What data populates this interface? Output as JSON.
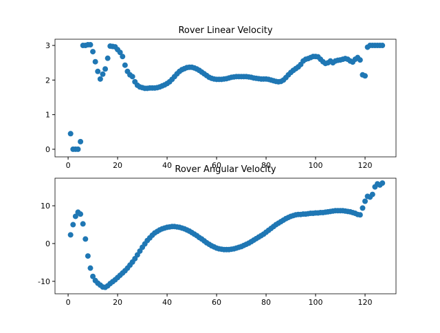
{
  "chart_data": [
    {
      "type": "scatter",
      "title": "Rover Linear Velocity",
      "color": "#1f77b4",
      "x": [
        1,
        2,
        3,
        4,
        5,
        6,
        7,
        8,
        9,
        10,
        11,
        12,
        13,
        14,
        15,
        16,
        17,
        18,
        19,
        20,
        21,
        22,
        23,
        24,
        25,
        26,
        27,
        28,
        29,
        30,
        31,
        32,
        33,
        34,
        35,
        36,
        37,
        38,
        39,
        40,
        41,
        42,
        43,
        44,
        45,
        46,
        47,
        48,
        49,
        50,
        51,
        52,
        53,
        54,
        55,
        56,
        57,
        58,
        59,
        60,
        61,
        62,
        63,
        64,
        65,
        66,
        67,
        68,
        69,
        70,
        71,
        72,
        73,
        74,
        75,
        76,
        77,
        78,
        79,
        80,
        81,
        82,
        83,
        84,
        85,
        86,
        87,
        88,
        89,
        90,
        91,
        92,
        93,
        94,
        95,
        96,
        97,
        98,
        99,
        100,
        101,
        102,
        103,
        104,
        105,
        106,
        107,
        108,
        109,
        110,
        111,
        112,
        113,
        114,
        115,
        116,
        117,
        118,
        119,
        120,
        121,
        122,
        123,
        124,
        125,
        126,
        127
      ],
      "values": [
        0.45,
        0,
        0,
        0,
        0.22,
        3.0,
        3.0,
        3.02,
        3.02,
        2.82,
        2.53,
        2.25,
        2.03,
        2.17,
        2.32,
        2.63,
        2.98,
        2.97,
        2.96,
        2.88,
        2.8,
        2.68,
        2.43,
        2.25,
        2.15,
        2.1,
        1.95,
        1.85,
        1.8,
        1.78,
        1.76,
        1.76,
        1.77,
        1.77,
        1.77,
        1.78,
        1.8,
        1.83,
        1.86,
        1.9,
        1.95,
        2.02,
        2.1,
        2.18,
        2.25,
        2.3,
        2.33,
        2.36,
        2.37,
        2.37,
        2.35,
        2.32,
        2.28,
        2.23,
        2.18,
        2.13,
        2.08,
        2.05,
        2.03,
        2.02,
        2.02,
        2.02,
        2.03,
        2.04,
        2.06,
        2.08,
        2.09,
        2.1,
        2.1,
        2.1,
        2.1,
        2.1,
        2.09,
        2.08,
        2.06,
        2.05,
        2.04,
        2.03,
        2.03,
        2.03,
        2.02,
        2.0,
        1.98,
        1.96,
        1.95,
        1.96,
        2.0,
        2.07,
        2.15,
        2.22,
        2.28,
        2.33,
        2.38,
        2.45,
        2.55,
        2.6,
        2.62,
        2.65,
        2.68,
        2.68,
        2.67,
        2.6,
        2.53,
        2.48,
        2.5,
        2.55,
        2.5,
        2.55,
        2.57,
        2.58,
        2.6,
        2.62,
        2.6,
        2.55,
        2.52,
        2.6,
        2.65,
        2.58,
        2.15,
        2.12,
        2.95,
        3.0,
        3.0,
        3.0,
        3.0,
        3.0,
        3.0
      ],
      "xlim": [
        -5.3,
        132.5
      ],
      "xticks": [
        0,
        20,
        40,
        60,
        80,
        100,
        120
      ],
      "ylim": [
        -0.22,
        3.18
      ],
      "yticks": [
        0,
        1,
        2,
        3
      ]
    },
    {
      "type": "scatter",
      "title": "Rover Angular Velocity",
      "color": "#1f77b4",
      "x": [
        1,
        2,
        3,
        4,
        5,
        6,
        7,
        8,
        9,
        10,
        11,
        12,
        13,
        14,
        15,
        16,
        17,
        18,
        19,
        20,
        21,
        22,
        23,
        24,
        25,
        26,
        27,
        28,
        29,
        30,
        31,
        32,
        33,
        34,
        35,
        36,
        37,
        38,
        39,
        40,
        41,
        42,
        43,
        44,
        45,
        46,
        47,
        48,
        49,
        50,
        51,
        52,
        53,
        54,
        55,
        56,
        57,
        58,
        59,
        60,
        61,
        62,
        63,
        64,
        65,
        66,
        67,
        68,
        69,
        70,
        71,
        72,
        73,
        74,
        75,
        76,
        77,
        78,
        79,
        80,
        81,
        82,
        83,
        84,
        85,
        86,
        87,
        88,
        89,
        90,
        91,
        92,
        93,
        94,
        95,
        96,
        97,
        98,
        99,
        100,
        101,
        102,
        103,
        104,
        105,
        106,
        107,
        108,
        109,
        110,
        111,
        112,
        113,
        114,
        115,
        116,
        117,
        118,
        119,
        120,
        121,
        122,
        123,
        124,
        125,
        126,
        127
      ],
      "values": [
        2.3,
        5.0,
        7.2,
        8.3,
        7.8,
        5.2,
        1.2,
        -3.3,
        -6.5,
        -8.7,
        -9.8,
        -10.5,
        -11.0,
        -11.5,
        -11.6,
        -11.2,
        -10.6,
        -10.1,
        -9.6,
        -9.0,
        -8.4,
        -7.8,
        -7.2,
        -6.5,
        -5.7,
        -4.9,
        -4.0,
        -3.0,
        -2.0,
        -1.0,
        -0.1,
        0.8,
        1.5,
        2.2,
        2.8,
        3.2,
        3.6,
        3.9,
        4.1,
        4.3,
        4.4,
        4.5,
        4.5,
        4.4,
        4.3,
        4.1,
        3.9,
        3.6,
        3.3,
        2.9,
        2.5,
        2.1,
        1.6,
        1.2,
        0.7,
        0.2,
        -0.2,
        -0.6,
        -0.9,
        -1.2,
        -1.4,
        -1.5,
        -1.6,
        -1.6,
        -1.6,
        -1.5,
        -1.4,
        -1.2,
        -1.0,
        -0.8,
        -0.5,
        -0.2,
        0.1,
        0.5,
        0.9,
        1.3,
        1.7,
        2.1,
        2.5,
        3.0,
        3.5,
        4.0,
        4.5,
        5.0,
        5.4,
        5.8,
        6.2,
        6.6,
        6.9,
        7.2,
        7.4,
        7.6,
        7.7,
        7.7,
        7.8,
        7.8,
        7.9,
        8.0,
        8.0,
        8.1,
        8.1,
        8.2,
        8.2,
        8.3,
        8.4,
        8.5,
        8.6,
        8.7,
        8.7,
        8.7,
        8.7,
        8.6,
        8.5,
        8.4,
        8.2,
        8.0,
        7.7,
        7.6,
        9.4,
        11.2,
        12.5,
        12.3,
        13.0,
        15.0,
        15.8,
        15.5,
        16.0
      ],
      "xlim": [
        -5.3,
        132.5
      ],
      "xticks": [
        0,
        20,
        40,
        60,
        80,
        100,
        120
      ],
      "ylim": [
        -13.3,
        17.3
      ],
      "yticks": [
        -10,
        0,
        10
      ]
    }
  ]
}
